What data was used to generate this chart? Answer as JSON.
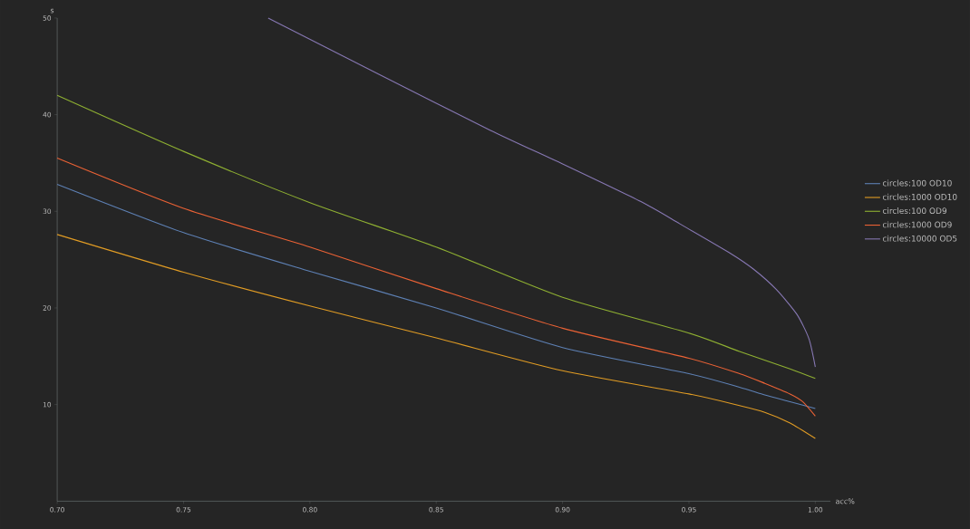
{
  "chart_data": {
    "type": "line",
    "xlabel": "acc%",
    "ylabel": "s",
    "xlim": [
      0.7,
      1.006
    ],
    "ylim": [
      0,
      50
    ],
    "xticks": [
      {
        "value": 0.7,
        "label": "0.70"
      },
      {
        "value": 0.75,
        "label": "0.75"
      },
      {
        "value": 0.8,
        "label": "0.80"
      },
      {
        "value": 0.85,
        "label": "0.85"
      },
      {
        "value": 0.9,
        "label": "0.90"
      },
      {
        "value": 0.95,
        "label": "0.95"
      },
      {
        "value": 1.0,
        "label": "1.00"
      }
    ],
    "yticks": [
      10,
      20,
      30,
      40,
      50
    ],
    "grid": false,
    "legend": "right",
    "marker": "none",
    "line_style": "solid",
    "series": [
      {
        "name": "circles:100 OD10",
        "color": "#5e81b5",
        "x": [
          0.7,
          0.75,
          0.8,
          0.85,
          0.9,
          0.95,
          0.97,
          0.98,
          0.99,
          1.0
        ],
        "values": [
          32.8,
          27.8,
          23.8,
          20.0,
          15.9,
          13.2,
          11.8,
          11.0,
          10.3,
          9.6
        ]
      },
      {
        "name": "circles:1000 OD10",
        "color": "#e19c24",
        "x": [
          0.7,
          0.75,
          0.8,
          0.85,
          0.9,
          0.95,
          0.97,
          0.98,
          0.99,
          1.0
        ],
        "values": [
          27.6,
          23.7,
          20.2,
          16.9,
          13.5,
          11.1,
          9.9,
          9.2,
          8.1,
          6.5
        ]
      },
      {
        "name": "circles:100 OD9",
        "color": "#8fb032",
        "x": [
          0.7,
          0.75,
          0.8,
          0.85,
          0.9,
          0.95,
          0.97,
          0.99,
          1.0
        ],
        "values": [
          42.0,
          36.2,
          30.9,
          26.3,
          21.1,
          17.4,
          15.5,
          13.7,
          12.7
        ]
      },
      {
        "name": "circles:1000 OD9",
        "color": "#eb6235",
        "x": [
          0.7,
          0.75,
          0.8,
          0.85,
          0.9,
          0.95,
          0.97,
          0.98,
          0.99,
          0.995,
          1.0
        ],
        "values": [
          35.5,
          30.3,
          26.3,
          22.0,
          17.9,
          14.8,
          13.2,
          12.2,
          11.1,
          10.3,
          8.8
        ]
      },
      {
        "name": "circles:10000 OD5",
        "color": "#8778b3",
        "x": [
          0.7835,
          0.8264,
          0.8713,
          0.9,
          0.931,
          0.9464,
          0.9667,
          0.9756,
          0.9846,
          0.9928,
          0.9975,
          1.0
        ],
        "values": [
          50,
          44.3,
          38.4,
          34.9,
          31.0,
          28.7,
          25.6,
          24.0,
          21.9,
          19.3,
          16.8,
          13.9
        ]
      }
    ]
  }
}
